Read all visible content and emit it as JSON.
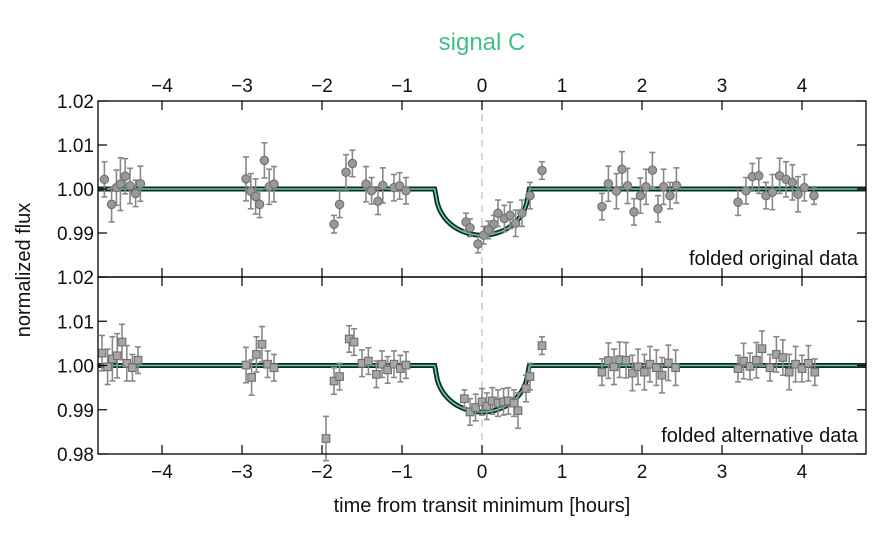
{
  "chart_data": {
    "type": "scatter",
    "title": "signal C",
    "xlabel": "time from transit minimum [hours]",
    "ylabel": "normalized flux",
    "xlim": [
      -4.8,
      4.8
    ],
    "x_ticks": [
      -4,
      -3,
      -2,
      -1,
      0,
      1,
      2,
      3,
      4
    ],
    "x_tick_labels": [
      "−4",
      "−3",
      "−2",
      "−1",
      "0",
      "1",
      "2",
      "3",
      "4"
    ],
    "colors": {
      "title": "#3fbf86",
      "model_outer": "#0e2a1e",
      "model_inner": "#5fd39b",
      "points": "#999999",
      "errorbars": "#888888",
      "zero_line": "#bbbbbb"
    },
    "model": {
      "transit_center_hours": 0.0,
      "baseline": 1.0,
      "depth": 0.0105,
      "ingress_start_hours": -0.58,
      "egress_end_hours": 0.58
    },
    "panels": [
      {
        "label": "folded original data",
        "ylim": [
          0.98,
          1.02
        ],
        "y_ticks": [
          0.99,
          1.0,
          1.01,
          1.02
        ],
        "y_tick_labels": [
          "0.99",
          "1.00",
          "1.01",
          "1.02"
        ],
        "marker": "circle",
        "points": [
          {
            "x": -4.72,
            "y": 1.0022,
            "err": 0.004
          },
          {
            "x": -4.63,
            "y": 0.9965,
            "err": 0.004
          },
          {
            "x": -4.57,
            "y": 1.0003,
            "err": 0.004
          },
          {
            "x": -4.52,
            "y": 1.0011,
            "err": 0.006
          },
          {
            "x": -4.46,
            "y": 1.0029,
            "err": 0.004
          },
          {
            "x": -4.4,
            "y": 1.0007,
            "err": 0.004
          },
          {
            "x": -4.33,
            "y": 0.999,
            "err": 0.003
          },
          {
            "x": -4.27,
            "y": 1.0012,
            "err": 0.004
          },
          {
            "x": -2.95,
            "y": 1.0023,
            "err": 0.005
          },
          {
            "x": -2.89,
            "y": 0.9995,
            "err": 0.004
          },
          {
            "x": -2.83,
            "y": 0.9983,
            "err": 0.004
          },
          {
            "x": -2.78,
            "y": 0.9965,
            "err": 0.003
          },
          {
            "x": -2.72,
            "y": 1.0065,
            "err": 0.004
          },
          {
            "x": -2.66,
            "y": 1.0005,
            "err": 0.004
          },
          {
            "x": -2.6,
            "y": 1.0011,
            "err": 0.004
          },
          {
            "x": -1.85,
            "y": 0.992,
            "err": 0.002
          },
          {
            "x": -1.78,
            "y": 0.9965,
            "err": 0.003
          },
          {
            "x": -1.7,
            "y": 1.0038,
            "err": 0.004
          },
          {
            "x": -1.62,
            "y": 1.0058,
            "err": 0.003
          },
          {
            "x": -1.45,
            "y": 1.0011,
            "err": 0.004
          },
          {
            "x": -1.38,
            "y": 0.9996,
            "err": 0.003
          },
          {
            "x": -1.3,
            "y": 0.9972,
            "err": 0.003
          },
          {
            "x": -1.24,
            "y": 1.0008,
            "err": 0.004
          },
          {
            "x": -1.1,
            "y": 1.0003,
            "err": 0.003
          },
          {
            "x": -1.03,
            "y": 1.0007,
            "err": 0.003
          },
          {
            "x": -0.95,
            "y": 0.9996,
            "err": 0.003
          },
          {
            "x": -0.2,
            "y": 0.9925,
            "err": 0.002
          },
          {
            "x": -0.15,
            "y": 0.9912,
            "err": 0.002
          },
          {
            "x": -0.05,
            "y": 0.9875,
            "err": 0.002
          },
          {
            "x": 0.02,
            "y": 0.9895,
            "err": 0.002
          },
          {
            "x": 0.08,
            "y": 0.9907,
            "err": 0.002
          },
          {
            "x": 0.15,
            "y": 0.992,
            "err": 0.002
          },
          {
            "x": 0.2,
            "y": 0.9945,
            "err": 0.003
          },
          {
            "x": 0.28,
            "y": 0.9933,
            "err": 0.003
          },
          {
            "x": 0.35,
            "y": 0.994,
            "err": 0.003
          },
          {
            "x": 0.42,
            "y": 0.9922,
            "err": 0.003
          },
          {
            "x": 0.5,
            "y": 0.9945,
            "err": 0.003
          },
          {
            "x": 0.6,
            "y": 0.9985,
            "err": 0.003
          },
          {
            "x": 0.75,
            "y": 1.0042,
            "err": 0.002
          },
          {
            "x": 1.5,
            "y": 0.996,
            "err": 0.003
          },
          {
            "x": 1.58,
            "y": 1.0012,
            "err": 0.004
          },
          {
            "x": 1.68,
            "y": 0.9995,
            "err": 0.004
          },
          {
            "x": 1.75,
            "y": 1.0045,
            "err": 0.004
          },
          {
            "x": 1.82,
            "y": 1.0007,
            "err": 0.004
          },
          {
            "x": 1.9,
            "y": 0.9948,
            "err": 0.003
          },
          {
            "x": 1.98,
            "y": 0.9985,
            "err": 0.004
          },
          {
            "x": 2.05,
            "y": 1.0005,
            "err": 0.004
          },
          {
            "x": 2.13,
            "y": 1.0043,
            "err": 0.004
          },
          {
            "x": 2.2,
            "y": 0.9955,
            "err": 0.003
          },
          {
            "x": 2.27,
            "y": 1.0005,
            "err": 0.004
          },
          {
            "x": 2.35,
            "y": 0.9985,
            "err": 0.003
          },
          {
            "x": 2.43,
            "y": 1.0008,
            "err": 0.004
          },
          {
            "x": 3.2,
            "y": 0.997,
            "err": 0.003
          },
          {
            "x": 3.3,
            "y": 0.9996,
            "err": 0.003
          },
          {
            "x": 3.38,
            "y": 1.0028,
            "err": 0.003
          },
          {
            "x": 3.46,
            "y": 1.003,
            "err": 0.004
          },
          {
            "x": 3.55,
            "y": 0.9985,
            "err": 0.003
          },
          {
            "x": 3.63,
            "y": 0.9993,
            "err": 0.004
          },
          {
            "x": 3.72,
            "y": 1.003,
            "err": 0.004
          },
          {
            "x": 3.8,
            "y": 1.0022,
            "err": 0.004
          },
          {
            "x": 3.88,
            "y": 1.0015,
            "err": 0.004
          },
          {
            "x": 3.95,
            "y": 0.9988,
            "err": 0.004
          },
          {
            "x": 4.03,
            "y": 1.0003,
            "err": 0.003
          },
          {
            "x": 4.15,
            "y": 0.9985,
            "err": 0.002
          }
        ]
      },
      {
        "label": "folded alternative data",
        "ylim": [
          0.98,
          1.02
        ],
        "y_ticks": [
          0.98,
          0.99,
          1.0,
          1.01,
          1.02
        ],
        "y_tick_labels": [
          "0.98",
          "0.99",
          "1.00",
          "1.01",
          "1.02"
        ],
        "marker": "square",
        "points": [
          {
            "x": -4.75,
            "y": 1.0028,
            "err": 0.004
          },
          {
            "x": -4.68,
            "y": 0.9997,
            "err": 0.004
          },
          {
            "x": -4.62,
            "y": 1.0015,
            "err": 0.005
          },
          {
            "x": -4.56,
            "y": 1.0022,
            "err": 0.005
          },
          {
            "x": -4.5,
            "y": 1.0053,
            "err": 0.004
          },
          {
            "x": -4.44,
            "y": 1.0005,
            "err": 0.004
          },
          {
            "x": -4.37,
            "y": 0.9995,
            "err": 0.003
          },
          {
            "x": -4.3,
            "y": 1.0012,
            "err": 0.003
          },
          {
            "x": -2.95,
            "y": 1.0001,
            "err": 0.004
          },
          {
            "x": -2.88,
            "y": 0.9973,
            "err": 0.004
          },
          {
            "x": -2.82,
            "y": 1.0025,
            "err": 0.004
          },
          {
            "x": -2.75,
            "y": 1.0048,
            "err": 0.004
          },
          {
            "x": -2.68,
            "y": 1.0003,
            "err": 0.003
          },
          {
            "x": -2.6,
            "y": 0.9995,
            "err": 0.003
          },
          {
            "x": -1.95,
            "y": 0.9835,
            "err": 0.005
          },
          {
            "x": -1.85,
            "y": 0.9965,
            "err": 0.003
          },
          {
            "x": -1.78,
            "y": 0.9975,
            "err": 0.003
          },
          {
            "x": -1.66,
            "y": 1.006,
            "err": 0.003
          },
          {
            "x": -1.6,
            "y": 1.0053,
            "err": 0.003
          },
          {
            "x": -1.5,
            "y": 1.0005,
            "err": 0.003
          },
          {
            "x": -1.42,
            "y": 1.001,
            "err": 0.003
          },
          {
            "x": -1.32,
            "y": 0.998,
            "err": 0.003
          },
          {
            "x": -1.25,
            "y": 1.0003,
            "err": 0.003
          },
          {
            "x": -1.18,
            "y": 0.999,
            "err": 0.003
          },
          {
            "x": -1.1,
            "y": 1.0003,
            "err": 0.003
          },
          {
            "x": -1.02,
            "y": 0.9993,
            "err": 0.003
          },
          {
            "x": -0.95,
            "y": 1.0001,
            "err": 0.003
          },
          {
            "x": -0.22,
            "y": 0.9925,
            "err": 0.002
          },
          {
            "x": -0.15,
            "y": 0.9895,
            "err": 0.003
          },
          {
            "x": -0.08,
            "y": 0.9905,
            "err": 0.003
          },
          {
            "x": 0.0,
            "y": 0.9918,
            "err": 0.003
          },
          {
            "x": 0.06,
            "y": 0.9908,
            "err": 0.003
          },
          {
            "x": 0.13,
            "y": 0.992,
            "err": 0.003
          },
          {
            "x": 0.2,
            "y": 0.9915,
            "err": 0.003
          },
          {
            "x": 0.27,
            "y": 0.9918,
            "err": 0.003
          },
          {
            "x": 0.33,
            "y": 0.992,
            "err": 0.003
          },
          {
            "x": 0.4,
            "y": 0.9915,
            "err": 0.003
          },
          {
            "x": 0.45,
            "y": 0.9898,
            "err": 0.004
          },
          {
            "x": 0.55,
            "y": 0.9948,
            "err": 0.003
          },
          {
            "x": 0.6,
            "y": 0.9975,
            "err": 0.003
          },
          {
            "x": 0.75,
            "y": 1.0045,
            "err": 0.002
          },
          {
            "x": 1.5,
            "y": 0.9985,
            "err": 0.003
          },
          {
            "x": 1.58,
            "y": 1.0011,
            "err": 0.004
          },
          {
            "x": 1.65,
            "y": 0.9997,
            "err": 0.004
          },
          {
            "x": 1.72,
            "y": 1.0013,
            "err": 0.004
          },
          {
            "x": 1.8,
            "y": 1.0012,
            "err": 0.004
          },
          {
            "x": 1.88,
            "y": 0.9983,
            "err": 0.004
          },
          {
            "x": 1.95,
            "y": 0.9997,
            "err": 0.004
          },
          {
            "x": 2.03,
            "y": 0.9985,
            "err": 0.004
          },
          {
            "x": 2.1,
            "y": 1.0003,
            "err": 0.004
          },
          {
            "x": 2.18,
            "y": 0.9995,
            "err": 0.004
          },
          {
            "x": 2.25,
            "y": 0.9978,
            "err": 0.004
          },
          {
            "x": 2.33,
            "y": 1.0006,
            "err": 0.004
          },
          {
            "x": 2.42,
            "y": 0.9995,
            "err": 0.004
          },
          {
            "x": 3.2,
            "y": 0.9993,
            "err": 0.003
          },
          {
            "x": 3.27,
            "y": 1.001,
            "err": 0.004
          },
          {
            "x": 3.35,
            "y": 0.9998,
            "err": 0.003
          },
          {
            "x": 3.43,
            "y": 1.0012,
            "err": 0.004
          },
          {
            "x": 3.5,
            "y": 1.0038,
            "err": 0.004
          },
          {
            "x": 3.6,
            "y": 0.9995,
            "err": 0.003
          },
          {
            "x": 3.68,
            "y": 1.0025,
            "err": 0.004
          },
          {
            "x": 3.76,
            "y": 1.0018,
            "err": 0.004
          },
          {
            "x": 3.84,
            "y": 0.9985,
            "err": 0.004
          },
          {
            "x": 3.92,
            "y": 1.0003,
            "err": 0.004
          },
          {
            "x": 4.0,
            "y": 0.9993,
            "err": 0.003
          },
          {
            "x": 4.08,
            "y": 1.0005,
            "err": 0.004
          },
          {
            "x": 4.16,
            "y": 0.9985,
            "err": 0.003
          }
        ]
      }
    ]
  }
}
